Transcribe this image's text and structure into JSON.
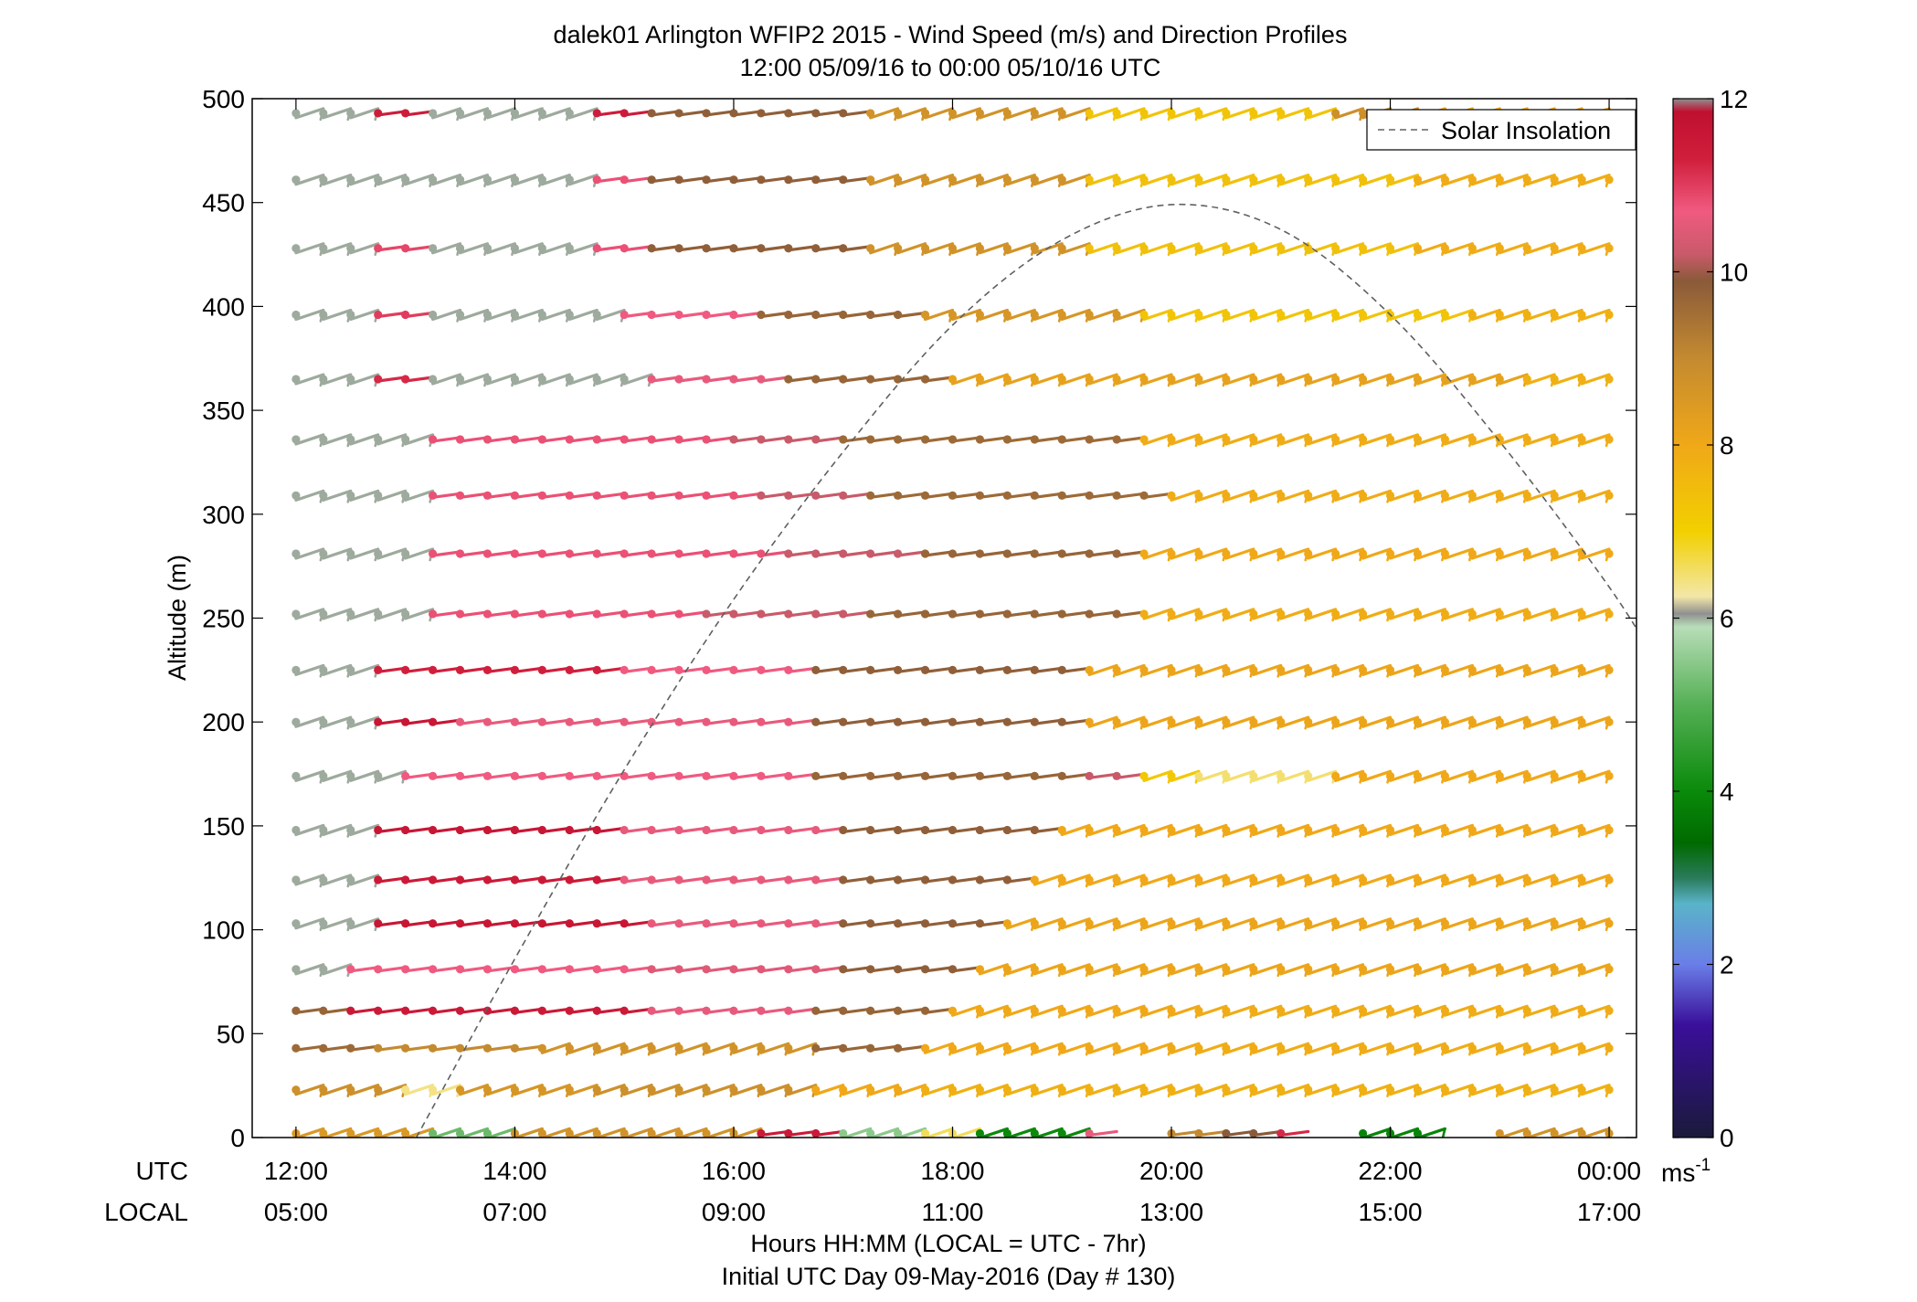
{
  "title": {
    "line1": "dalek01 Arlington WFIP2 2015 - Wind Speed (m/s) and Direction Profiles",
    "line2": "12:00 05/09/16 to 00:00 05/10/16  UTC"
  },
  "xaxis": {
    "row1_name": "UTC",
    "row2_name": "LOCAL",
    "label": "Hours HH:MM  (LOCAL = UTC - 7hr)",
    "footer": "Initial UTC Day 09-May-2016 (Day # 130)",
    "range_hours": [
      11.6,
      24.25
    ],
    "ticks": [
      {
        "hour": 12,
        "utc": "12:00",
        "local": "05:00"
      },
      {
        "hour": 14,
        "utc": "14:00",
        "local": "07:00"
      },
      {
        "hour": 16,
        "utc": "16:00",
        "local": "09:00"
      },
      {
        "hour": 18,
        "utc": "18:00",
        "local": "11:00"
      },
      {
        "hour": 20,
        "utc": "20:00",
        "local": "13:00"
      },
      {
        "hour": 22,
        "utc": "22:00",
        "local": "15:00"
      },
      {
        "hour": 24,
        "utc": "00:00",
        "local": "17:00"
      }
    ]
  },
  "yaxis": {
    "label": "Altitude (m)",
    "ylim": [
      0,
      500
    ],
    "ticks": [
      "0",
      "50",
      "100",
      "150",
      "200",
      "250",
      "300",
      "350",
      "400",
      "450",
      "500"
    ]
  },
  "colorbar": {
    "range": [
      0,
      12
    ],
    "ticks": [
      "0",
      "2",
      "4",
      "6",
      "8",
      "10",
      "12"
    ],
    "unit": "ms",
    "unit_exp": "-1",
    "stops": [
      {
        "v": 0,
        "c": "#1a1a3a"
      },
      {
        "v": 1.3,
        "c": "#3a0f9a"
      },
      {
        "v": 2.0,
        "c": "#6a7ee8"
      },
      {
        "v": 2.7,
        "c": "#5ab4c8"
      },
      {
        "v": 3.0,
        "c": "#2a7a5a"
      },
      {
        "v": 3.4,
        "c": "#006a00"
      },
      {
        "v": 4.0,
        "c": "#0a8a0a"
      },
      {
        "v": 5.0,
        "c": "#55b055"
      },
      {
        "v": 5.9,
        "c": "#b8ddb8"
      },
      {
        "v": 6.05,
        "c": "#909090"
      },
      {
        "v": 6.25,
        "c": "#f3e7a8"
      },
      {
        "v": 7.0,
        "c": "#f2d000"
      },
      {
        "v": 8.0,
        "c": "#f0a818"
      },
      {
        "v": 9.0,
        "c": "#c48a30"
      },
      {
        "v": 9.9,
        "c": "#8a5a3a"
      },
      {
        "v": 10.2,
        "c": "#c85a6a"
      },
      {
        "v": 10.7,
        "c": "#f05a80"
      },
      {
        "v": 11.3,
        "c": "#d01f3c"
      },
      {
        "v": 11.85,
        "c": "#c01030"
      },
      {
        "v": 12.0,
        "c": "#909090"
      }
    ]
  },
  "legend": {
    "label": "Solar Insolation",
    "position": "top-right"
  },
  "colors": {
    "axis": "#000000",
    "curve": "#606060",
    "missing": "#7a7a7a"
  },
  "chart_data": {
    "type": "wind-barb-profile",
    "time_step_hours": 0.25,
    "time_start_hour": 12.0,
    "time_end_hour": 24.0,
    "altitudes_m": [
      2,
      23,
      43,
      61,
      81,
      103,
      124,
      148,
      174,
      200,
      225,
      252,
      281,
      309,
      336,
      365,
      396,
      428,
      461,
      493
    ],
    "speed_segments_mps": [
      [
        [
          12.0,
          13.0,
          8.5
        ],
        [
          13.0,
          13.75,
          5.2
        ],
        [
          13.75,
          16.0,
          8.7
        ],
        [
          16.0,
          16.75,
          11.5
        ],
        [
          16.75,
          17.5,
          5.5
        ],
        [
          17.5,
          18.0,
          6.6
        ],
        [
          18.0,
          19.0,
          4.0
        ],
        [
          19.0,
          19.35,
          10.6
        ],
        [
          20.0,
          20.4,
          9.0
        ],
        [
          20.4,
          20.75,
          9.9
        ],
        [
          20.85,
          21.2,
          11.2
        ],
        [
          21.75,
          22.35,
          3.9
        ],
        [
          23.0,
          24.0,
          8.7
        ]
      ],
      [
        [
          12.0,
          12.75,
          8.8
        ],
        [
          12.75,
          13.25,
          6.4
        ],
        [
          13.25,
          14.5,
          8.6
        ],
        [
          14.5,
          16.5,
          8.8
        ],
        [
          16.5,
          17.5,
          8.0
        ],
        [
          17.5,
          24.0,
          7.8
        ]
      ],
      [
        [
          12.0,
          12.5,
          9.6
        ],
        [
          12.5,
          14.0,
          9.0
        ],
        [
          14.0,
          16.5,
          8.7
        ],
        [
          16.5,
          17.5,
          9.7
        ],
        [
          17.5,
          20.0,
          8.0
        ],
        [
          20.0,
          24.0,
          7.9
        ]
      ],
      [
        [
          12.0,
          12.25,
          9.7
        ],
        [
          12.25,
          15.0,
          11.5
        ],
        [
          15.0,
          16.5,
          10.6
        ],
        [
          16.5,
          17.75,
          9.7
        ],
        [
          17.75,
          20.0,
          8.0
        ],
        [
          20.0,
          24.0,
          7.9
        ]
      ],
      [
        [
          12.0,
          12.25,
          6.0
        ],
        [
          12.25,
          15.0,
          10.7
        ],
        [
          15.0,
          16.75,
          10.5
        ],
        [
          16.75,
          18.0,
          9.8
        ],
        [
          18.0,
          24.0,
          8.1
        ]
      ],
      [
        [
          12.0,
          12.5,
          6.0
        ],
        [
          12.5,
          15.0,
          11.6
        ],
        [
          15.0,
          16.75,
          10.6
        ],
        [
          16.75,
          18.25,
          9.8
        ],
        [
          18.25,
          24.0,
          8.1
        ]
      ],
      [
        [
          12.0,
          12.5,
          6.0
        ],
        [
          12.5,
          14.75,
          11.5
        ],
        [
          14.75,
          16.75,
          10.6
        ],
        [
          16.75,
          18.5,
          9.8
        ],
        [
          18.5,
          24.0,
          8.0
        ]
      ],
      [
        [
          12.0,
          12.5,
          6.0
        ],
        [
          12.5,
          14.75,
          11.6
        ],
        [
          14.75,
          16.75,
          10.6
        ],
        [
          16.75,
          18.75,
          9.8
        ],
        [
          18.75,
          24.0,
          8.0
        ]
      ],
      [
        [
          12.0,
          12.75,
          6.0
        ],
        [
          12.75,
          16.5,
          10.7
        ],
        [
          16.5,
          19.0,
          9.7
        ],
        [
          19.0,
          19.5,
          10.2
        ],
        [
          19.5,
          20.0,
          7.2
        ],
        [
          20.0,
          21.25,
          6.5
        ],
        [
          21.25,
          24.0,
          8.0
        ]
      ],
      [
        [
          12.0,
          12.5,
          6.0
        ],
        [
          12.5,
          13.25,
          11.6
        ],
        [
          13.25,
          16.5,
          10.6
        ],
        [
          16.5,
          19.0,
          9.8
        ],
        [
          19.0,
          24.0,
          8.1
        ]
      ],
      [
        [
          12.0,
          12.5,
          6.0
        ],
        [
          12.5,
          14.75,
          11.3
        ],
        [
          14.75,
          16.5,
          10.7
        ],
        [
          16.5,
          19.0,
          9.8
        ],
        [
          19.0,
          24.0,
          8.1
        ]
      ],
      [
        [
          12.0,
          13.0,
          6.0
        ],
        [
          13.0,
          15.5,
          10.8
        ],
        [
          15.5,
          17.0,
          10.2
        ],
        [
          17.0,
          19.5,
          9.7
        ],
        [
          19.5,
          24.0,
          7.9
        ]
      ],
      [
        [
          12.0,
          13.0,
          6.0
        ],
        [
          13.0,
          16.25,
          10.8
        ],
        [
          16.25,
          17.5,
          10.2
        ],
        [
          17.5,
          19.5,
          9.7
        ],
        [
          19.5,
          24.0,
          8.0
        ]
      ],
      [
        [
          12.0,
          13.0,
          6.0
        ],
        [
          13.0,
          16.0,
          10.8
        ],
        [
          16.0,
          17.0,
          10.2
        ],
        [
          17.0,
          19.75,
          9.6
        ],
        [
          19.75,
          24.0,
          7.9
        ]
      ],
      [
        [
          12.0,
          13.0,
          6.0
        ],
        [
          13.0,
          15.75,
          10.8
        ],
        [
          15.75,
          16.75,
          10.2
        ],
        [
          16.75,
          19.5,
          9.6
        ],
        [
          19.5,
          24.0,
          7.9
        ]
      ],
      [
        [
          12.0,
          12.5,
          6.0
        ],
        [
          12.5,
          13.0,
          11.2
        ],
        [
          13.0,
          15.0,
          6.0
        ],
        [
          15.0,
          16.25,
          10.6
        ],
        [
          16.25,
          17.75,
          9.7
        ],
        [
          17.75,
          23.0,
          8.2
        ],
        [
          23.0,
          24.0,
          7.8
        ]
      ],
      [
        [
          12.0,
          12.5,
          6.0
        ],
        [
          12.5,
          13.0,
          11.0
        ],
        [
          13.0,
          14.75,
          6.0
        ],
        [
          14.75,
          16.0,
          10.7
        ],
        [
          16.0,
          17.5,
          9.7
        ],
        [
          17.5,
          19.5,
          8.6
        ],
        [
          19.5,
          22.5,
          7.3
        ],
        [
          22.5,
          24.0,
          7.8
        ]
      ],
      [
        [
          12.0,
          12.5,
          6.0
        ],
        [
          12.5,
          13.0,
          10.9
        ],
        [
          13.0,
          14.5,
          6.0
        ],
        [
          14.5,
          15.0,
          10.8
        ],
        [
          15.0,
          17.0,
          9.8
        ],
        [
          17.0,
          19.0,
          8.7
        ],
        [
          19.0,
          22.0,
          7.4
        ],
        [
          22.0,
          24.0,
          7.9
        ]
      ],
      [
        [
          12.0,
          14.5,
          6.0
        ],
        [
          14.5,
          15.0,
          10.8
        ],
        [
          15.0,
          17.0,
          9.8
        ],
        [
          17.0,
          19.0,
          8.7
        ],
        [
          19.0,
          22.0,
          7.4
        ],
        [
          22.0,
          24.0,
          7.9
        ]
      ],
      [
        [
          12.0,
          12.5,
          6.0
        ],
        [
          12.5,
          13.0,
          11.4
        ],
        [
          13.0,
          14.5,
          6.0
        ],
        [
          14.5,
          15.0,
          11.4
        ],
        [
          15.0,
          17.0,
          9.8
        ],
        [
          17.0,
          19.0,
          8.7
        ],
        [
          19.0,
          21.25,
          7.3
        ],
        [
          21.25,
          22.0,
          8.8
        ],
        [
          22.0,
          24.0,
          7.9
        ]
      ]
    ],
    "solar_insolation_curve": {
      "x_hours": [
        13.1,
        14.0,
        15.0,
        16.0,
        17.0,
        18.0,
        19.0,
        20.0,
        21.0,
        22.0,
        23.0,
        24.0,
        24.5
      ],
      "y_altitude_equiv": [
        0,
        86,
        177,
        259,
        330,
        391,
        432,
        449,
        437,
        396,
        335,
        265,
        223
      ]
    }
  }
}
